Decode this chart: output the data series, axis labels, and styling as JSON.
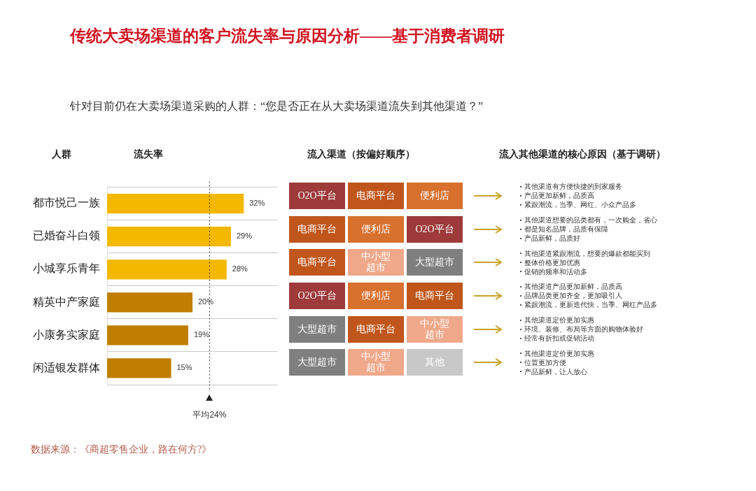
{
  "chart_data": [
    {
      "type": "bar",
      "title": "传统大卖场渠道的客户流失率与原因分析——基于消费者调研",
      "subtitle": "针对目前仍在大卖场渠道采购的人群：“您是否正在从大卖场渠道流失到其他渠道？”",
      "ylabel": "人群",
      "xlabel": "流失率",
      "orientation": "horizontal",
      "categories": [
        "都市悦己一族",
        "已婚奋斗白领",
        "小城享乐青年",
        "精英中产家庭",
        "小康务实家庭",
        "闲适银发群体"
      ],
      "values": [
        32,
        29,
        28,
        20,
        19,
        15
      ],
      "colors": [
        "#f5b800",
        "#f5b800",
        "#f5b800",
        "#c07e00",
        "#c07e00",
        "#c07e00"
      ],
      "value_labels": [
        "32%",
        "29%",
        "28%",
        "20%",
        "19%",
        "15%"
      ],
      "xlim": [
        0,
        40
      ],
      "tick_labels": "y",
      "grid": "y",
      "legend": false,
      "ref_lines": [
        {
          "axis": "x",
          "value": 24,
          "label": "平均24%",
          "line_style": "dotted",
          "color": "#333333"
        }
      ],
      "annotations": [
        "数据来源：《商超零售企业，路在何方?》"
      ]
    },
    {
      "type": "other",
      "title": "流入渠道（按偏好顺序）",
      "annotations": [
        "O2O平台",
        "电商平台",
        "便利店",
        "电商平台",
        "便利店",
        "O2O平台",
        "电商平台",
        "中小型超市",
        "大型超市",
        "O2O平台",
        "便利店",
        "电商平台",
        "大型超市",
        "电商平台",
        "中小型超市",
        "大型超市",
        "中小型超市",
        "其他"
      ],
      "colors": [
        "#9e3a3a",
        "#c0561c",
        "#d8702e",
        "#c0561c",
        "#d8702e",
        "#9e3a3a",
        "#c0561c",
        "#f0a88a",
        "#7f7f7f",
        "#9e3a3a",
        "#d8702e",
        "#c0561c",
        "#7f7f7f",
        "#c0561c",
        "#f0a88a",
        "#7f7f7f",
        "#f0a88a",
        "#c8c8c8"
      ]
    },
    {
      "type": "other",
      "title": "流入其他渠道的核心原因（基于调研）",
      "annotations": [
        "其他渠道有方便快捷的到家服务",
        "产品更加新鲜，品质高",
        "紧跟潮流，当季、网红、小众产品多",
        "其他渠道想要的品类都有，一次购全，省心",
        "都是知名品牌，品质有保障",
        "产品新鲜，品质好",
        "其他渠道紧跟潮流，想要的爆款都能买到",
        "整体价格更加优惠",
        "促销的频率和活动多",
        "其他渠道产品更加新鲜，品质高",
        "品牌品类更加齐全，更加吸引人",
        "紧跟潮流，更新迭代快，当季、网红产品多",
        "其他渠道定价更加实惠",
        "环境、装修、布局等方面的购物体验好",
        "经常有折扣或促销活动",
        "其他渠道定价更加实惠",
        "位置更加方便",
        "产品新鲜，让人放心"
      ]
    }
  ]
}
